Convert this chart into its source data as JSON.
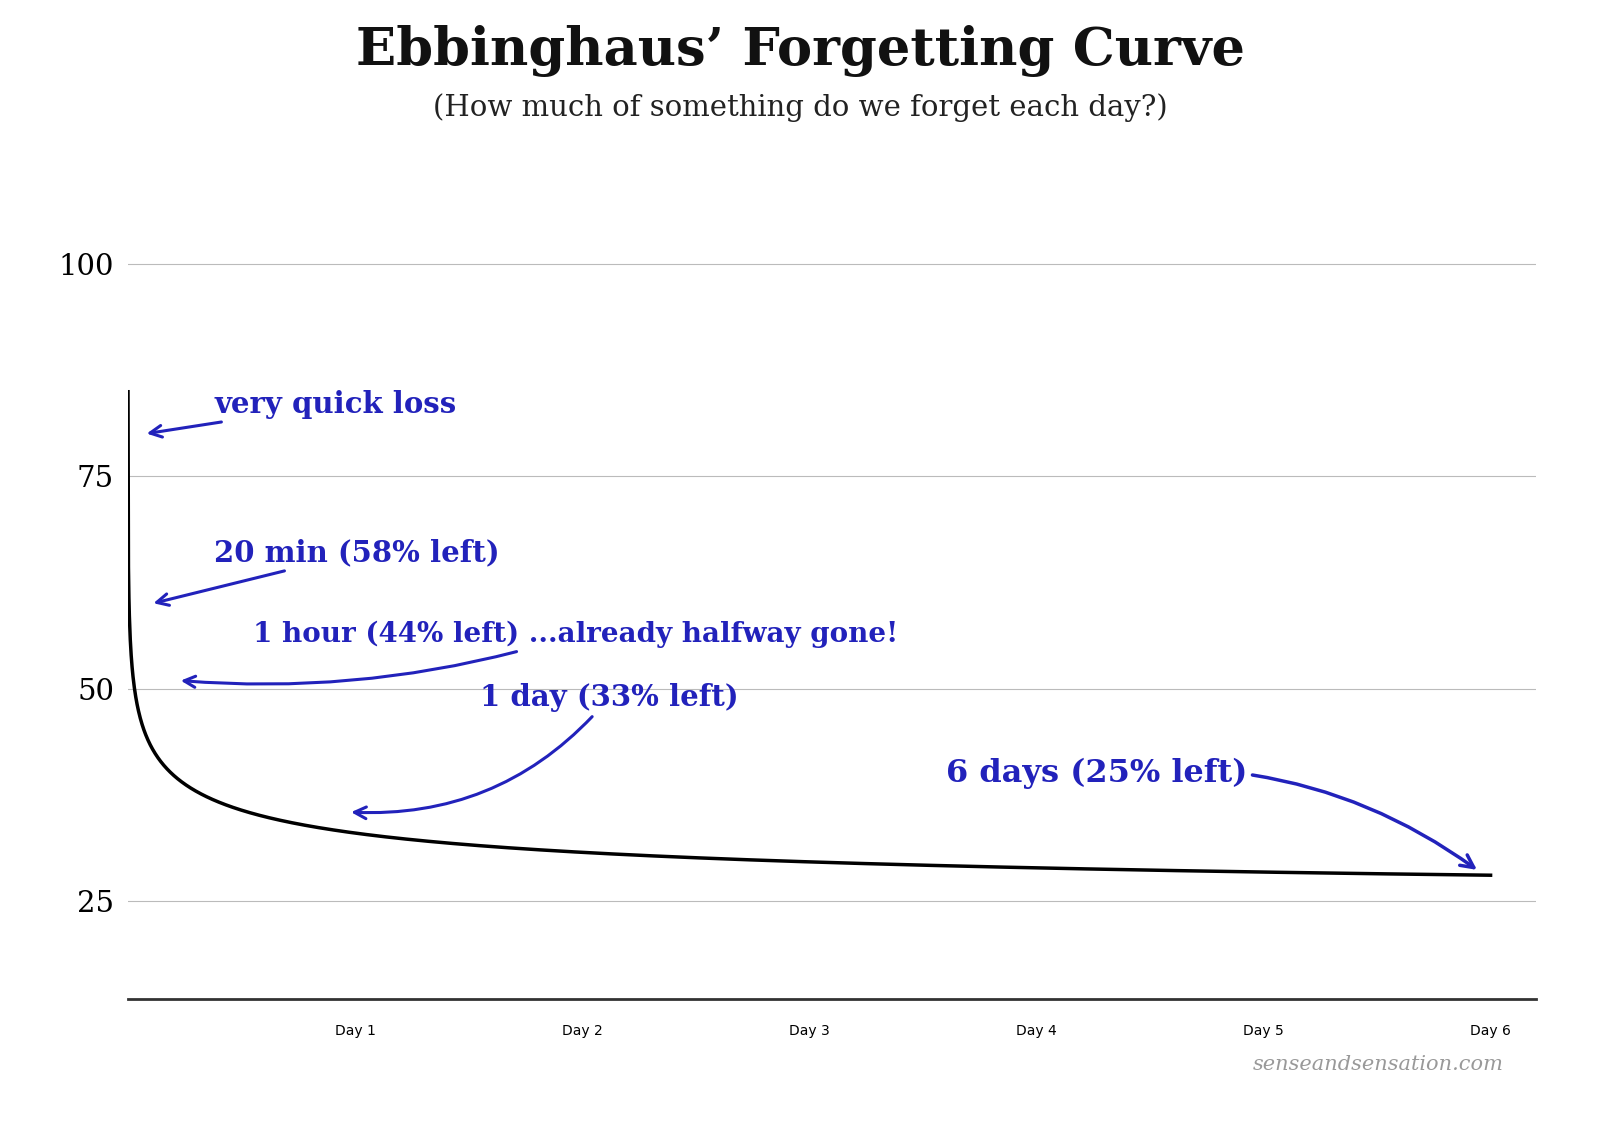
{
  "title": "Ebbinghaus’ Forgetting Curve",
  "subtitle": "(How much of something do we forget each day?)",
  "title_fontsize": 38,
  "subtitle_fontsize": 21,
  "curve_color": "#000000",
  "annotation_color": "#2222BB",
  "background_color": "#ffffff",
  "yticks": [
    25,
    50,
    75,
    100
  ],
  "xtick_labels": [
    "Day 1",
    "Day 2",
    "Day 3",
    "Day 4",
    "Day 5",
    "Day 6"
  ],
  "xlim": [
    0,
    6.2
  ],
  "ylim": [
    20,
    107
  ],
  "watermark": "senseandsensation.com",
  "curve_b": 2.235,
  "curve_c": 0.2,
  "curve_floor": 25,
  "curve_scale": 75
}
